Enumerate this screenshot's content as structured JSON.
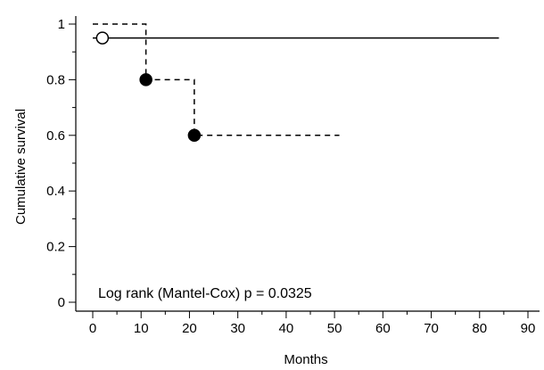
{
  "chart_data": {
    "type": "line",
    "subtype": "kaplan-meier-step",
    "xlabel": "Months",
    "ylabel": "Cumulative survival",
    "xlim": [
      0,
      90
    ],
    "ylim": [
      0,
      1
    ],
    "x_ticks": [
      0,
      10,
      20,
      30,
      40,
      50,
      60,
      70,
      80,
      90
    ],
    "x_minor_ticks": [
      5,
      15,
      25,
      35,
      45,
      55,
      65,
      75,
      85
    ],
    "y_ticks": [
      0,
      0.2,
      0.4,
      0.6,
      0.8,
      1
    ],
    "y_tick_labels": [
      "0",
      "0.2",
      "0.4",
      "0.6",
      "0.8",
      "1"
    ],
    "y_minor_ticks": [
      0.1,
      0.3,
      0.5,
      0.7,
      0.9
    ],
    "grid": false,
    "legend": "none",
    "annotation": "Log rank (Mantel-Cox) p = 0.0325",
    "series": [
      {
        "style": "solid",
        "color": "#000000",
        "steps": [
          [
            0,
            0.95
          ],
          [
            84,
            0.95
          ]
        ],
        "markers": [
          {
            "x": 2,
            "y": 0.95,
            "filled": false
          }
        ]
      },
      {
        "style": "dashed",
        "color": "#000000",
        "steps": [
          [
            0,
            1.0
          ],
          [
            11,
            0.8
          ],
          [
            21,
            0.6
          ],
          [
            51,
            0.6
          ]
        ],
        "markers": [
          {
            "x": 11,
            "y": 0.8,
            "filled": true
          },
          {
            "x": 21,
            "y": 0.6,
            "filled": true
          }
        ]
      }
    ]
  }
}
